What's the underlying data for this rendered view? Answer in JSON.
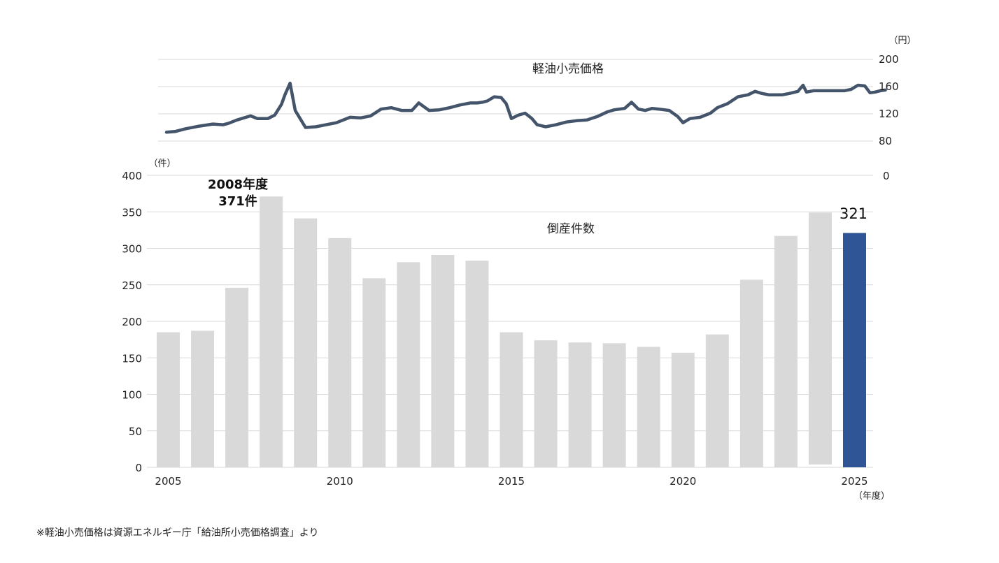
{
  "chart_data": [
    {
      "type": "line",
      "title": "軽油小売価格",
      "unit": "（円）",
      "ylim": [
        80,
        200
      ],
      "yticks": [
        80,
        120,
        160,
        200
      ],
      "extra_tick": "0",
      "color": "#44546a",
      "series": [
        {
          "x": [
            2004.95,
            2005.2,
            2005.5,
            2005.9,
            2006.3,
            2006.6,
            2006.75,
            2007.0,
            2007.4,
            2007.6,
            2007.9,
            2008.1,
            2008.2,
            2008.3,
            2008.4,
            2008.55,
            2008.7,
            2009.0,
            2009.3,
            2009.6,
            2009.9,
            2010.0,
            2010.3,
            2010.6,
            2010.8,
            2010.9,
            2011.2,
            2011.5,
            2011.8,
            2012.1,
            2012.3,
            2012.6,
            2012.9,
            2013.2,
            2013.5,
            2013.8,
            2014.0,
            2014.15,
            2014.3,
            2014.5,
            2014.7,
            2014.85,
            2015.0,
            2015.2,
            2015.4,
            2015.6,
            2015.75,
            2016.0,
            2016.3,
            2016.6,
            2016.9,
            2017.2,
            2017.5,
            2017.8,
            2018.0,
            2018.3,
            2018.5,
            2018.7,
            2018.9,
            2019.1,
            2019.3,
            2019.6,
            2019.85,
            2020.0,
            2020.2,
            2020.5,
            2020.8,
            2021.0,
            2021.3,
            2021.6,
            2021.9,
            2022.1,
            2022.3,
            2022.5,
            2022.7,
            2022.9,
            2023.1,
            2023.35,
            2023.5,
            2023.6,
            2023.8,
            2024.1,
            2024.4,
            2024.7,
            2024.9,
            2025.1,
            2025.3,
            2025.45,
            2025.6,
            2025.75,
            2025.9
          ],
          "y": [
            93,
            94,
            98,
            102,
            105,
            104,
            106,
            111,
            117,
            113,
            113,
            118,
            126,
            134,
            148,
            165,
            125,
            100,
            101,
            104,
            107,
            109,
            115,
            114,
            116,
            117,
            127,
            129,
            125,
            125,
            136,
            125,
            126,
            129,
            133,
            136,
            136,
            137,
            139,
            145,
            144,
            135,
            113,
            118,
            121,
            113,
            104,
            101,
            104,
            108,
            110,
            111,
            116,
            123,
            126,
            128,
            137,
            127,
            125,
            128,
            127,
            125,
            116,
            107,
            113,
            115,
            121,
            129,
            135,
            145,
            148,
            153,
            150,
            148,
            148,
            148,
            150,
            153,
            162,
            152,
            154,
            154,
            154,
            154,
            156,
            162,
            161,
            151,
            152,
            154,
            155
          ]
        }
      ]
    },
    {
      "type": "bar",
      "title": "倒産件数",
      "unit": "（件）",
      "x_unit": "（年度）",
      "ylim": [
        0,
        400
      ],
      "yticks": [
        0,
        50,
        100,
        150,
        200,
        250,
        300,
        350,
        400
      ],
      "x_tick_labels": [
        "2005",
        "2010",
        "2015",
        "2020",
        "2025"
      ],
      "categories": [
        "2005",
        "2006",
        "2007",
        "2008",
        "2009",
        "2010",
        "2011",
        "2012",
        "2013",
        "2014",
        "2015",
        "2016",
        "2017",
        "2018",
        "2019",
        "2020",
        "2021",
        "2022",
        "2023",
        "2024",
        "2025"
      ],
      "values": [
        185,
        187,
        246,
        371,
        341,
        314,
        259,
        281,
        291,
        283,
        185,
        174,
        171,
        170,
        165,
        157,
        182,
        257,
        317,
        349,
        321
      ],
      "bar_color": "#d9d9d9",
      "highlight_color": "#2f5597",
      "highlight_label": "321",
      "peak_annotation": [
        "2008年度",
        "371件"
      ]
    }
  ],
  "footnote": "※軽油小売価格は資源エネルギー庁「給油所小売価格調査」より"
}
